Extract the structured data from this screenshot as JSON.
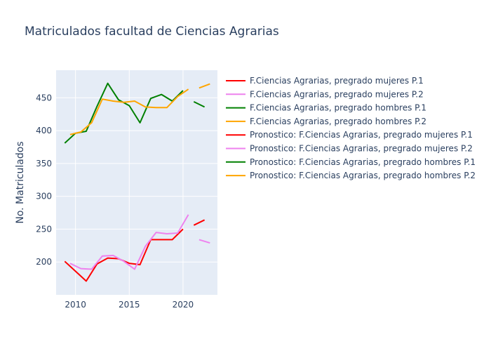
{
  "chart_data": {
    "type": "line",
    "title": "Matriculados facultad de Ciencias Agrarias",
    "xlabel": "",
    "ylabel": "No. Matriculados",
    "xlim": [
      2008.2,
      2023.2
    ],
    "ylim": [
      150,
      492
    ],
    "x_ticks": [
      2010,
      2015,
      2020
    ],
    "y_ticks": [
      200,
      250,
      300,
      350,
      400,
      450
    ],
    "grid": true,
    "legend_position": "right",
    "series": [
      {
        "name": "F.Ciencias Agrarias, pregrado mujeres P.1",
        "color": "#ff0000",
        "points": [
          [
            2009,
            201
          ],
          [
            2011,
            171
          ],
          [
            2012,
            197
          ],
          [
            2013,
            206
          ],
          [
            2014,
            205
          ],
          [
            2015,
            198
          ],
          [
            2016,
            196
          ],
          [
            2017,
            234
          ],
          [
            2018,
            234
          ],
          [
            2019,
            234
          ],
          [
            2020,
            250
          ]
        ]
      },
      {
        "name": "F.Ciencias Agrarias, pregrado mujeres P.2",
        "color": "#ee82ee",
        "points": [
          [
            2009.5,
            198
          ],
          [
            2010.5,
            190
          ],
          [
            2011.5,
            189
          ],
          [
            2012.5,
            209
          ],
          [
            2013.5,
            210
          ],
          [
            2014.5,
            201
          ],
          [
            2015.5,
            189
          ],
          [
            2016.5,
            224
          ],
          [
            2017.5,
            245
          ],
          [
            2018.5,
            243
          ],
          [
            2019.5,
            244
          ],
          [
            2020.5,
            272
          ]
        ]
      },
      {
        "name": "F.Ciencias Agrarias, pregrado hombres P.1",
        "color": "#008000",
        "points": [
          [
            2009,
            381
          ],
          [
            2010,
            396
          ],
          [
            2011,
            399
          ],
          [
            2012,
            437
          ],
          [
            2013,
            472
          ],
          [
            2014,
            447
          ],
          [
            2015,
            438
          ],
          [
            2016,
            412
          ],
          [
            2017,
            449
          ],
          [
            2018,
            455
          ],
          [
            2019,
            445
          ],
          [
            2020,
            461
          ]
        ]
      },
      {
        "name": "F.Ciencias Agrarias, pregrado hombres P.2",
        "color": "#ffa500",
        "points": [
          [
            2009.5,
            394
          ],
          [
            2010.5,
            398
          ],
          [
            2011.5,
            412
          ],
          [
            2012.5,
            448
          ],
          [
            2013.5,
            445
          ],
          [
            2014.5,
            443
          ],
          [
            2015.5,
            445
          ],
          [
            2016.5,
            436
          ],
          [
            2017.5,
            435
          ],
          [
            2018.5,
            435
          ],
          [
            2019.5,
            452
          ],
          [
            2020.5,
            463
          ]
        ]
      },
      {
        "name": "Pronostico: F.Ciencias Agrarias, pregrado mujeres P.1",
        "color": "#ff0000",
        "points": [
          [
            2021,
            256
          ],
          [
            2022,
            264
          ]
        ]
      },
      {
        "name": "Pronostico: F.Ciencias Agrarias, pregrado mujeres P.2",
        "color": "#ee82ee",
        "points": [
          [
            2021.5,
            234
          ],
          [
            2022.5,
            229
          ]
        ]
      },
      {
        "name": "Pronostico: F.Ciencias Agrarias, pregrado hombres P.1",
        "color": "#008000",
        "points": [
          [
            2021,
            444
          ],
          [
            2022,
            436
          ]
        ]
      },
      {
        "name": "Pronostico: F.Ciencias Agrarias, pregrado hombres P.2",
        "color": "#ffa500",
        "points": [
          [
            2021.5,
            465
          ],
          [
            2022.5,
            471
          ]
        ]
      }
    ]
  }
}
